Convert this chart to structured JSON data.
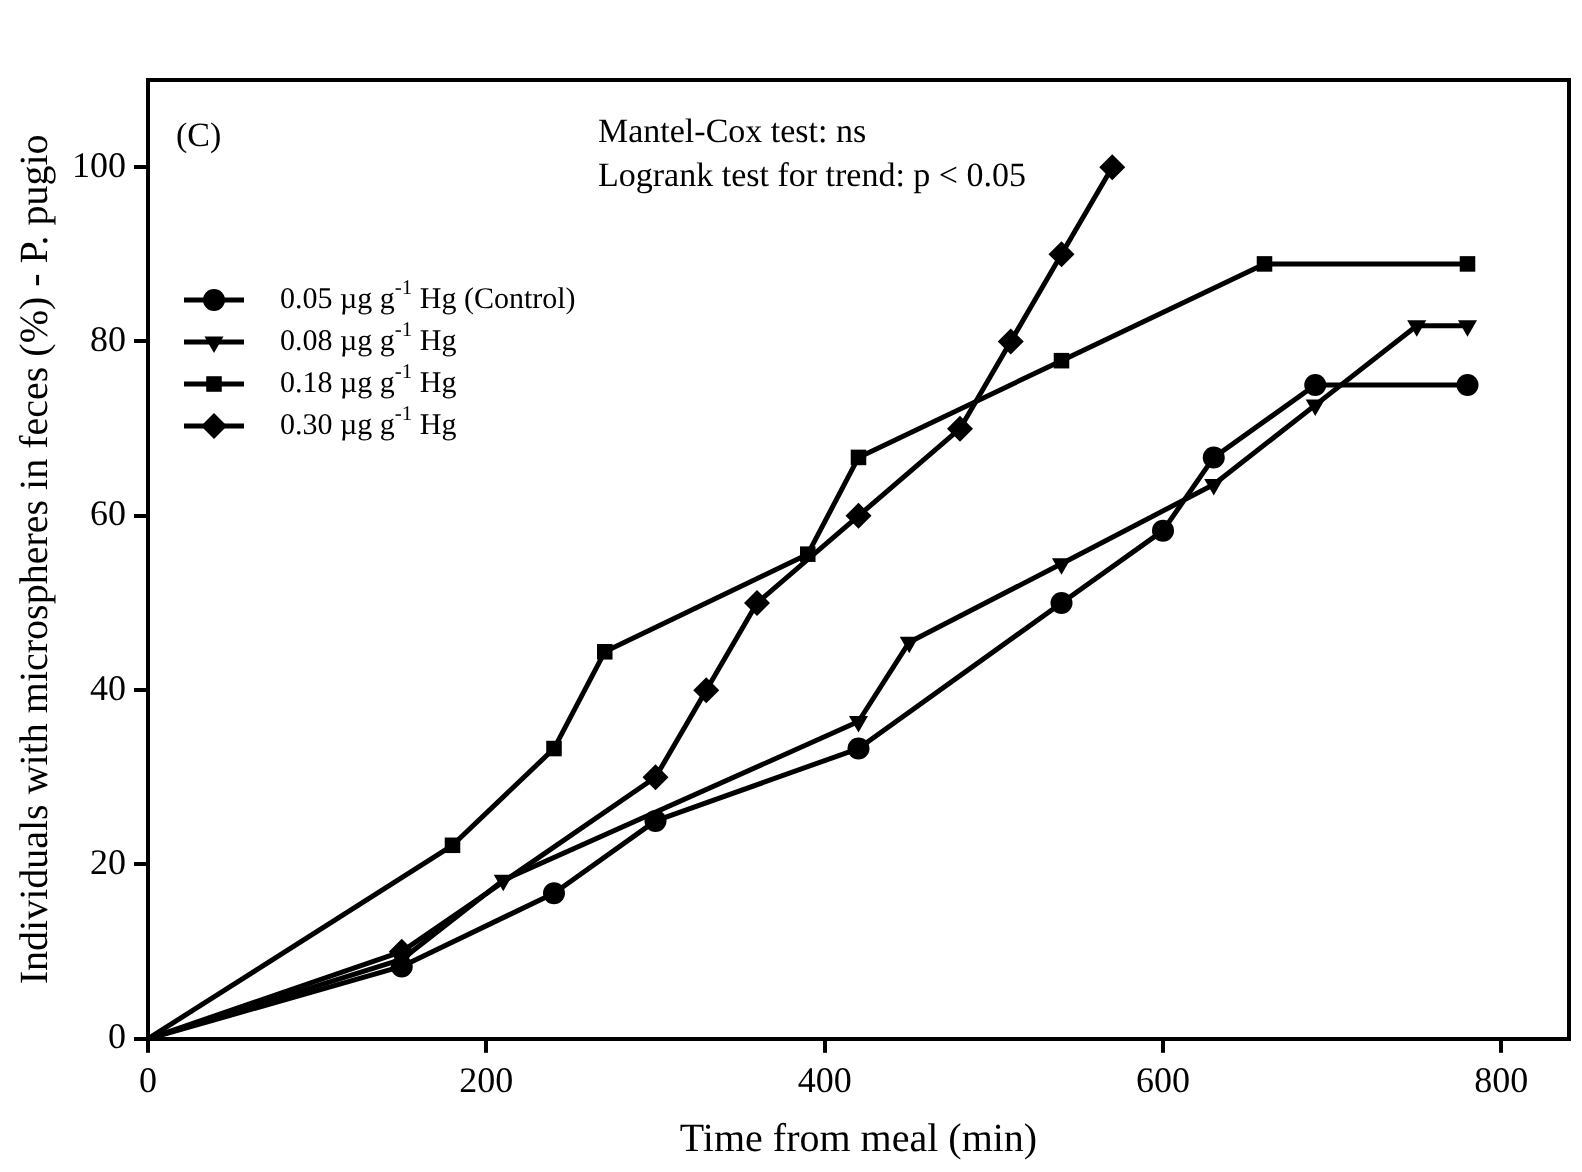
{
  "chart_data": {
    "type": "line",
    "xlabel": "Time from meal (min)",
    "ylabel": "Individuals with microspheres in feces (%) - P. pugio",
    "annotations": [
      "(C)",
      "Mantel-Cox test: ns",
      "Logrank test for trend: p < 0.05"
    ],
    "xlim": [
      0,
      840
    ],
    "xticks": [
      0,
      200,
      400,
      600,
      800
    ],
    "ylim": [
      0,
      110
    ],
    "yticks": [
      0,
      20,
      40,
      60,
      80,
      100
    ],
    "grid": false,
    "legend": "top left",
    "series": [
      {
        "name": "0.05 µg g$^{-1}$ Hg (Control)",
        "color": "#000000",
        "marker": "circle",
        "x": [
          0,
          150,
          240,
          300,
          420,
          540,
          600,
          630,
          690,
          780
        ],
        "values": [
          0,
          8.3,
          16.7,
          25,
          33.3,
          50,
          58.3,
          66.7,
          75,
          75
        ]
      },
      {
        "name": "0.08 µg g$^{-1}$ Hg",
        "color": "#000000",
        "marker": "triangle",
        "x": [
          0,
          150,
          210,
          420,
          450,
          540,
          630,
          690,
          750,
          780
        ],
        "values": [
          0,
          9.1,
          18.2,
          36.4,
          45.5,
          54.5,
          63.6,
          72.7,
          81.8,
          81.8
        ]
      },
      {
        "name": "0.18 µg g$^{-1}$ Hg",
        "color": "#000000",
        "marker": "square",
        "x": [
          0,
          180,
          240,
          270,
          390,
          420,
          540,
          660,
          780
        ],
        "values": [
          0,
          22.2,
          33.3,
          44.4,
          55.6,
          66.7,
          77.8,
          88.9,
          88.9
        ]
      },
      {
        "name": "0.30 µg g$^{-1}$ Hg",
        "color": "#000000",
        "marker": "diamond",
        "x": [
          0,
          150,
          300,
          330,
          360,
          420,
          480,
          510,
          540,
          570
        ],
        "values": [
          0,
          10,
          30,
          40,
          50,
          60,
          70,
          80,
          90,
          100
        ]
      }
    ]
  }
}
